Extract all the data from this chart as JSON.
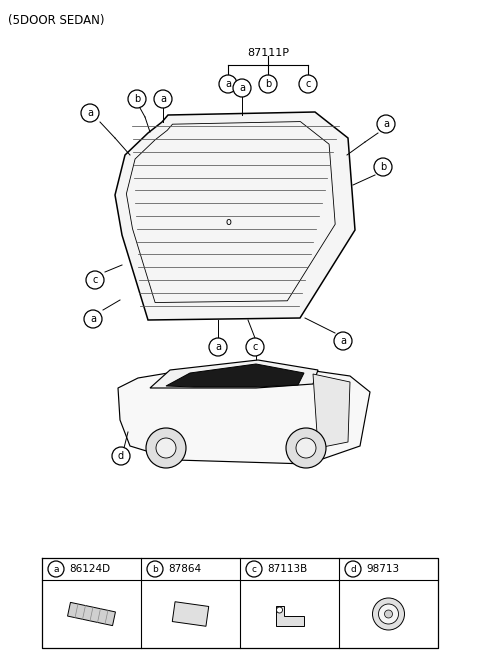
{
  "title": "(5DOOR SEDAN)",
  "bg_color": "#ffffff",
  "part_label": "87111P",
  "parts_table": [
    {
      "letter": "a",
      "code": "86124D"
    },
    {
      "letter": "b",
      "code": "87864"
    },
    {
      "letter": "c",
      "code": "87113B"
    },
    {
      "letter": "d",
      "code": "98713"
    }
  ],
  "line_color": "#000000",
  "glass_fill": "#f5f5f5",
  "heater_line_color": "#555555",
  "car_body_fill": "#f8f8f8",
  "wheel_fill": "#e0e0e0"
}
